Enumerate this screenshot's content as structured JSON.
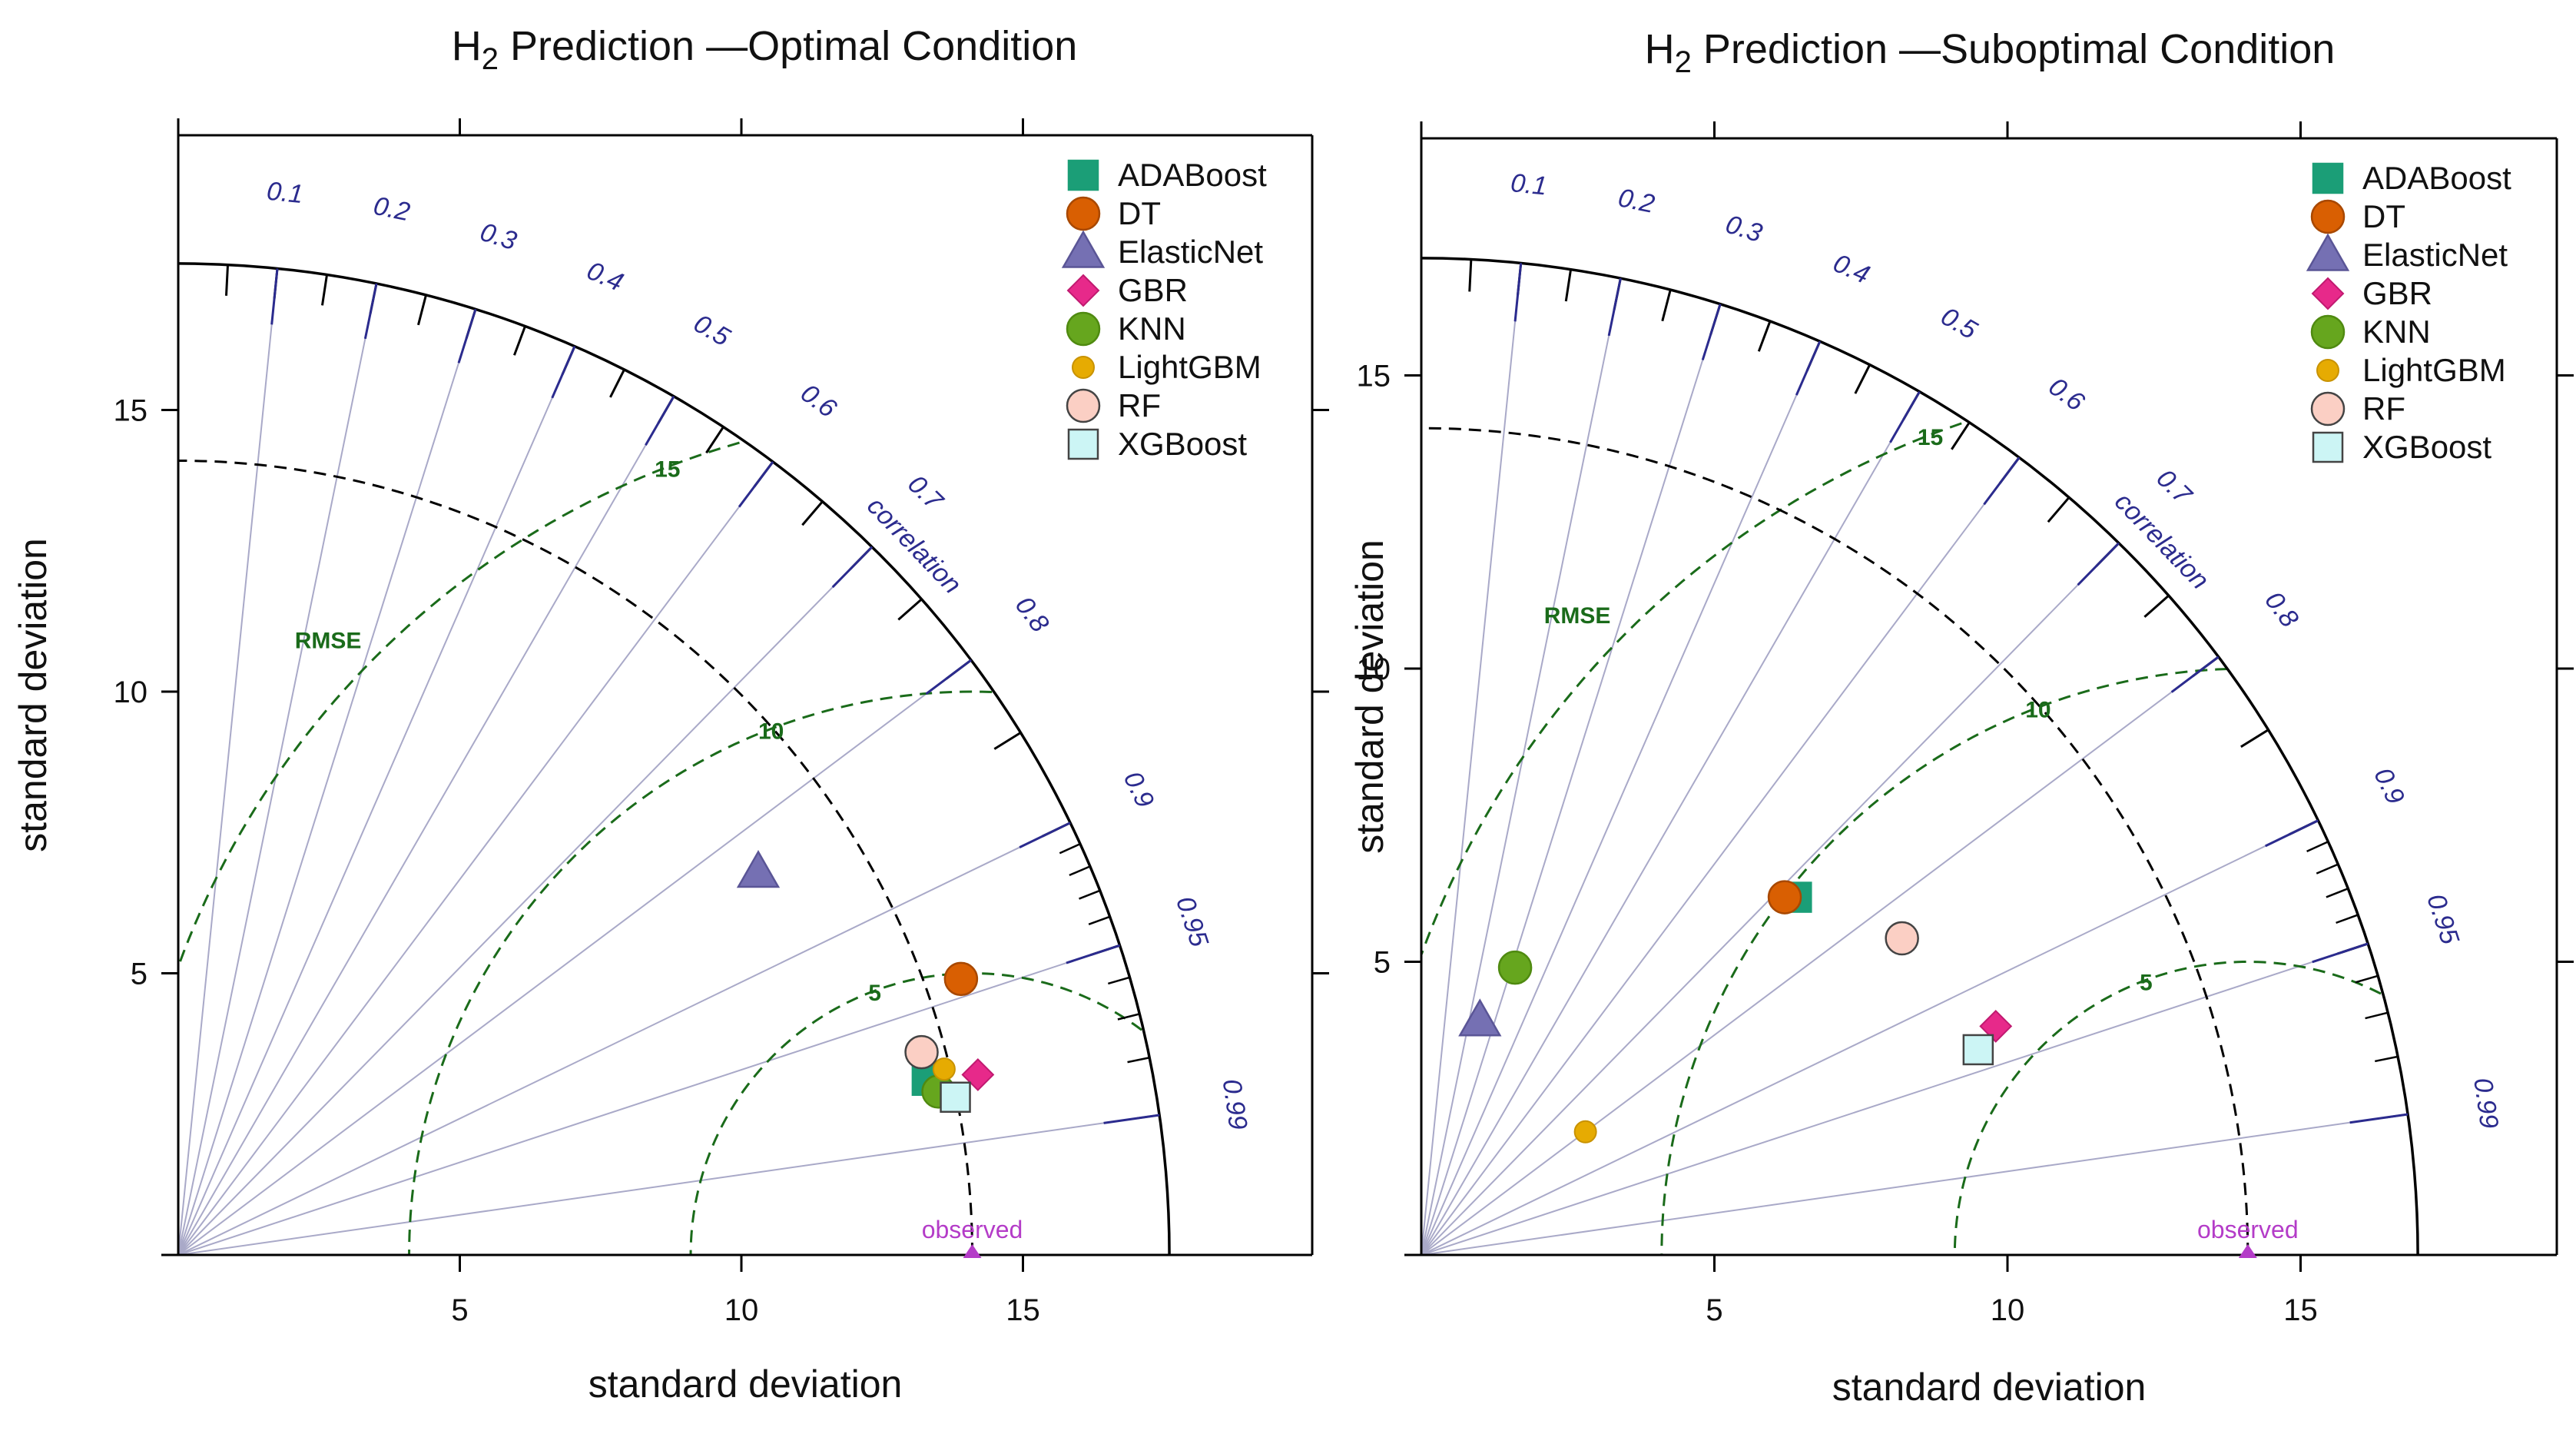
{
  "chart_data": [
    {
      "type": "taylor",
      "title": "H2 Prediction — Optimal Condition",
      "title_base": "H",
      "title_sub": "2",
      "title_rest": " Prediction —Optimal Condition",
      "xlabel": "standard deviation",
      "ylabel": "standard deviation",
      "xlim": [
        0,
        20
      ],
      "ylim": [
        0,
        20
      ],
      "x_ticks": [
        5,
        10,
        15
      ],
      "y_ticks": [
        5,
        10,
        15
      ],
      "max_sd": 17.6,
      "observed_sd": 14.1,
      "observed_label": "observed",
      "sd_arcs": [
        14.1
      ],
      "rmse_contours": [
        5,
        10,
        15
      ],
      "rmse_contour_labels": [
        "5",
        "10",
        "15"
      ],
      "rmse_label": "RMSE",
      "correlation_label": "correlation",
      "correlation_ticks": [
        "0.1",
        "0.2",
        "0.3",
        "0.4",
        "0.5",
        "0.6",
        "0.7",
        "0.8",
        "0.9",
        "0.95",
        "0.99"
      ],
      "correlation_values": [
        0.1,
        0.2,
        0.3,
        0.4,
        0.5,
        0.6,
        0.7,
        0.8,
        0.9,
        0.95,
        0.99
      ],
      "points": [
        {
          "model": "ADABoost",
          "x": 13.3,
          "y": 3.1
        },
        {
          "model": "DT",
          "x": 13.9,
          "y": 4.9
        },
        {
          "model": "ElasticNet",
          "x": 10.3,
          "y": 6.8
        },
        {
          "model": "GBR",
          "x": 14.2,
          "y": 3.2
        },
        {
          "model": "KNN",
          "x": 13.5,
          "y": 2.9
        },
        {
          "model": "LightGBM",
          "x": 13.6,
          "y": 3.3
        },
        {
          "model": "RF",
          "x": 13.2,
          "y": 3.6
        },
        {
          "model": "XGBoost",
          "x": 13.8,
          "y": 2.8
        }
      ]
    },
    {
      "type": "taylor",
      "title": "H2 Prediction — Suboptimal Condition",
      "title_base": "H",
      "title_sub": "2",
      "title_rest": " Prediction —Suboptimal Condition",
      "xlabel": "standard deviation",
      "ylabel": "standard deviation",
      "xlim": [
        0,
        19
      ],
      "ylim": [
        0,
        19
      ],
      "x_ticks": [
        5,
        10,
        15
      ],
      "y_ticks": [
        5,
        10,
        15
      ],
      "max_sd": 17.0,
      "observed_sd": 14.1,
      "observed_label": "observed",
      "sd_arcs": [
        14.1
      ],
      "rmse_contours": [
        5,
        10,
        15
      ],
      "rmse_contour_labels": [
        "5",
        "10",
        "15"
      ],
      "rmse_label": "RMSE",
      "correlation_label": "correlation",
      "correlation_ticks": [
        "0.1",
        "0.2",
        "0.3",
        "0.4",
        "0.5",
        "0.6",
        "0.7",
        "0.8",
        "0.9",
        "0.95",
        "0.99"
      ],
      "correlation_values": [
        0.1,
        0.2,
        0.3,
        0.4,
        0.5,
        0.6,
        0.7,
        0.8,
        0.9,
        0.95,
        0.99
      ],
      "points": [
        {
          "model": "ADABoost",
          "x": 6.4,
          "y": 6.1
        },
        {
          "model": "DT",
          "x": 6.2,
          "y": 6.1
        },
        {
          "model": "ElasticNet",
          "x": 1.0,
          "y": 4.0
        },
        {
          "model": "GBR",
          "x": 9.8,
          "y": 3.9
        },
        {
          "model": "KNN",
          "x": 1.6,
          "y": 4.9
        },
        {
          "model": "LightGBM",
          "x": 2.8,
          "y": 2.1
        },
        {
          "model": "RF",
          "x": 8.2,
          "y": 5.4
        },
        {
          "model": "XGBoost",
          "x": 9.5,
          "y": 3.5
        }
      ]
    }
  ],
  "legend": [
    {
      "label": "ADABoost",
      "marker": "square",
      "color": "#1b9e77",
      "stroke": "#1b9e77"
    },
    {
      "label": "DT",
      "marker": "circle",
      "color": "#d95f02",
      "stroke": "#a84800"
    },
    {
      "label": "ElasticNet",
      "marker": "triangle",
      "color": "#7570b3",
      "stroke": "#5a5596"
    },
    {
      "label": "GBR",
      "marker": "diamond",
      "color": "#e7298a",
      "stroke": "#c01a70"
    },
    {
      "label": "KNN",
      "marker": "circle",
      "color": "#66a61e",
      "stroke": "#4f8a10"
    },
    {
      "label": "LightGBM",
      "marker": "smallcircle",
      "color": "#e6ab02",
      "stroke": "#c89200"
    },
    {
      "label": "RF",
      "marker": "circle",
      "color": "#fbcfc4",
      "stroke": "#444444"
    },
    {
      "label": "XGBoost",
      "marker": "square",
      "color": "#ccf5f5",
      "stroke": "#444444"
    }
  ],
  "colors": {
    "axis": "#000000",
    "grid_radial": "#a9a9c8",
    "rmse_contour": "#1a6b1a",
    "sd_arc": "#000000",
    "corr_tick": "#2b2b8e",
    "observed": "#b43cc8"
  }
}
